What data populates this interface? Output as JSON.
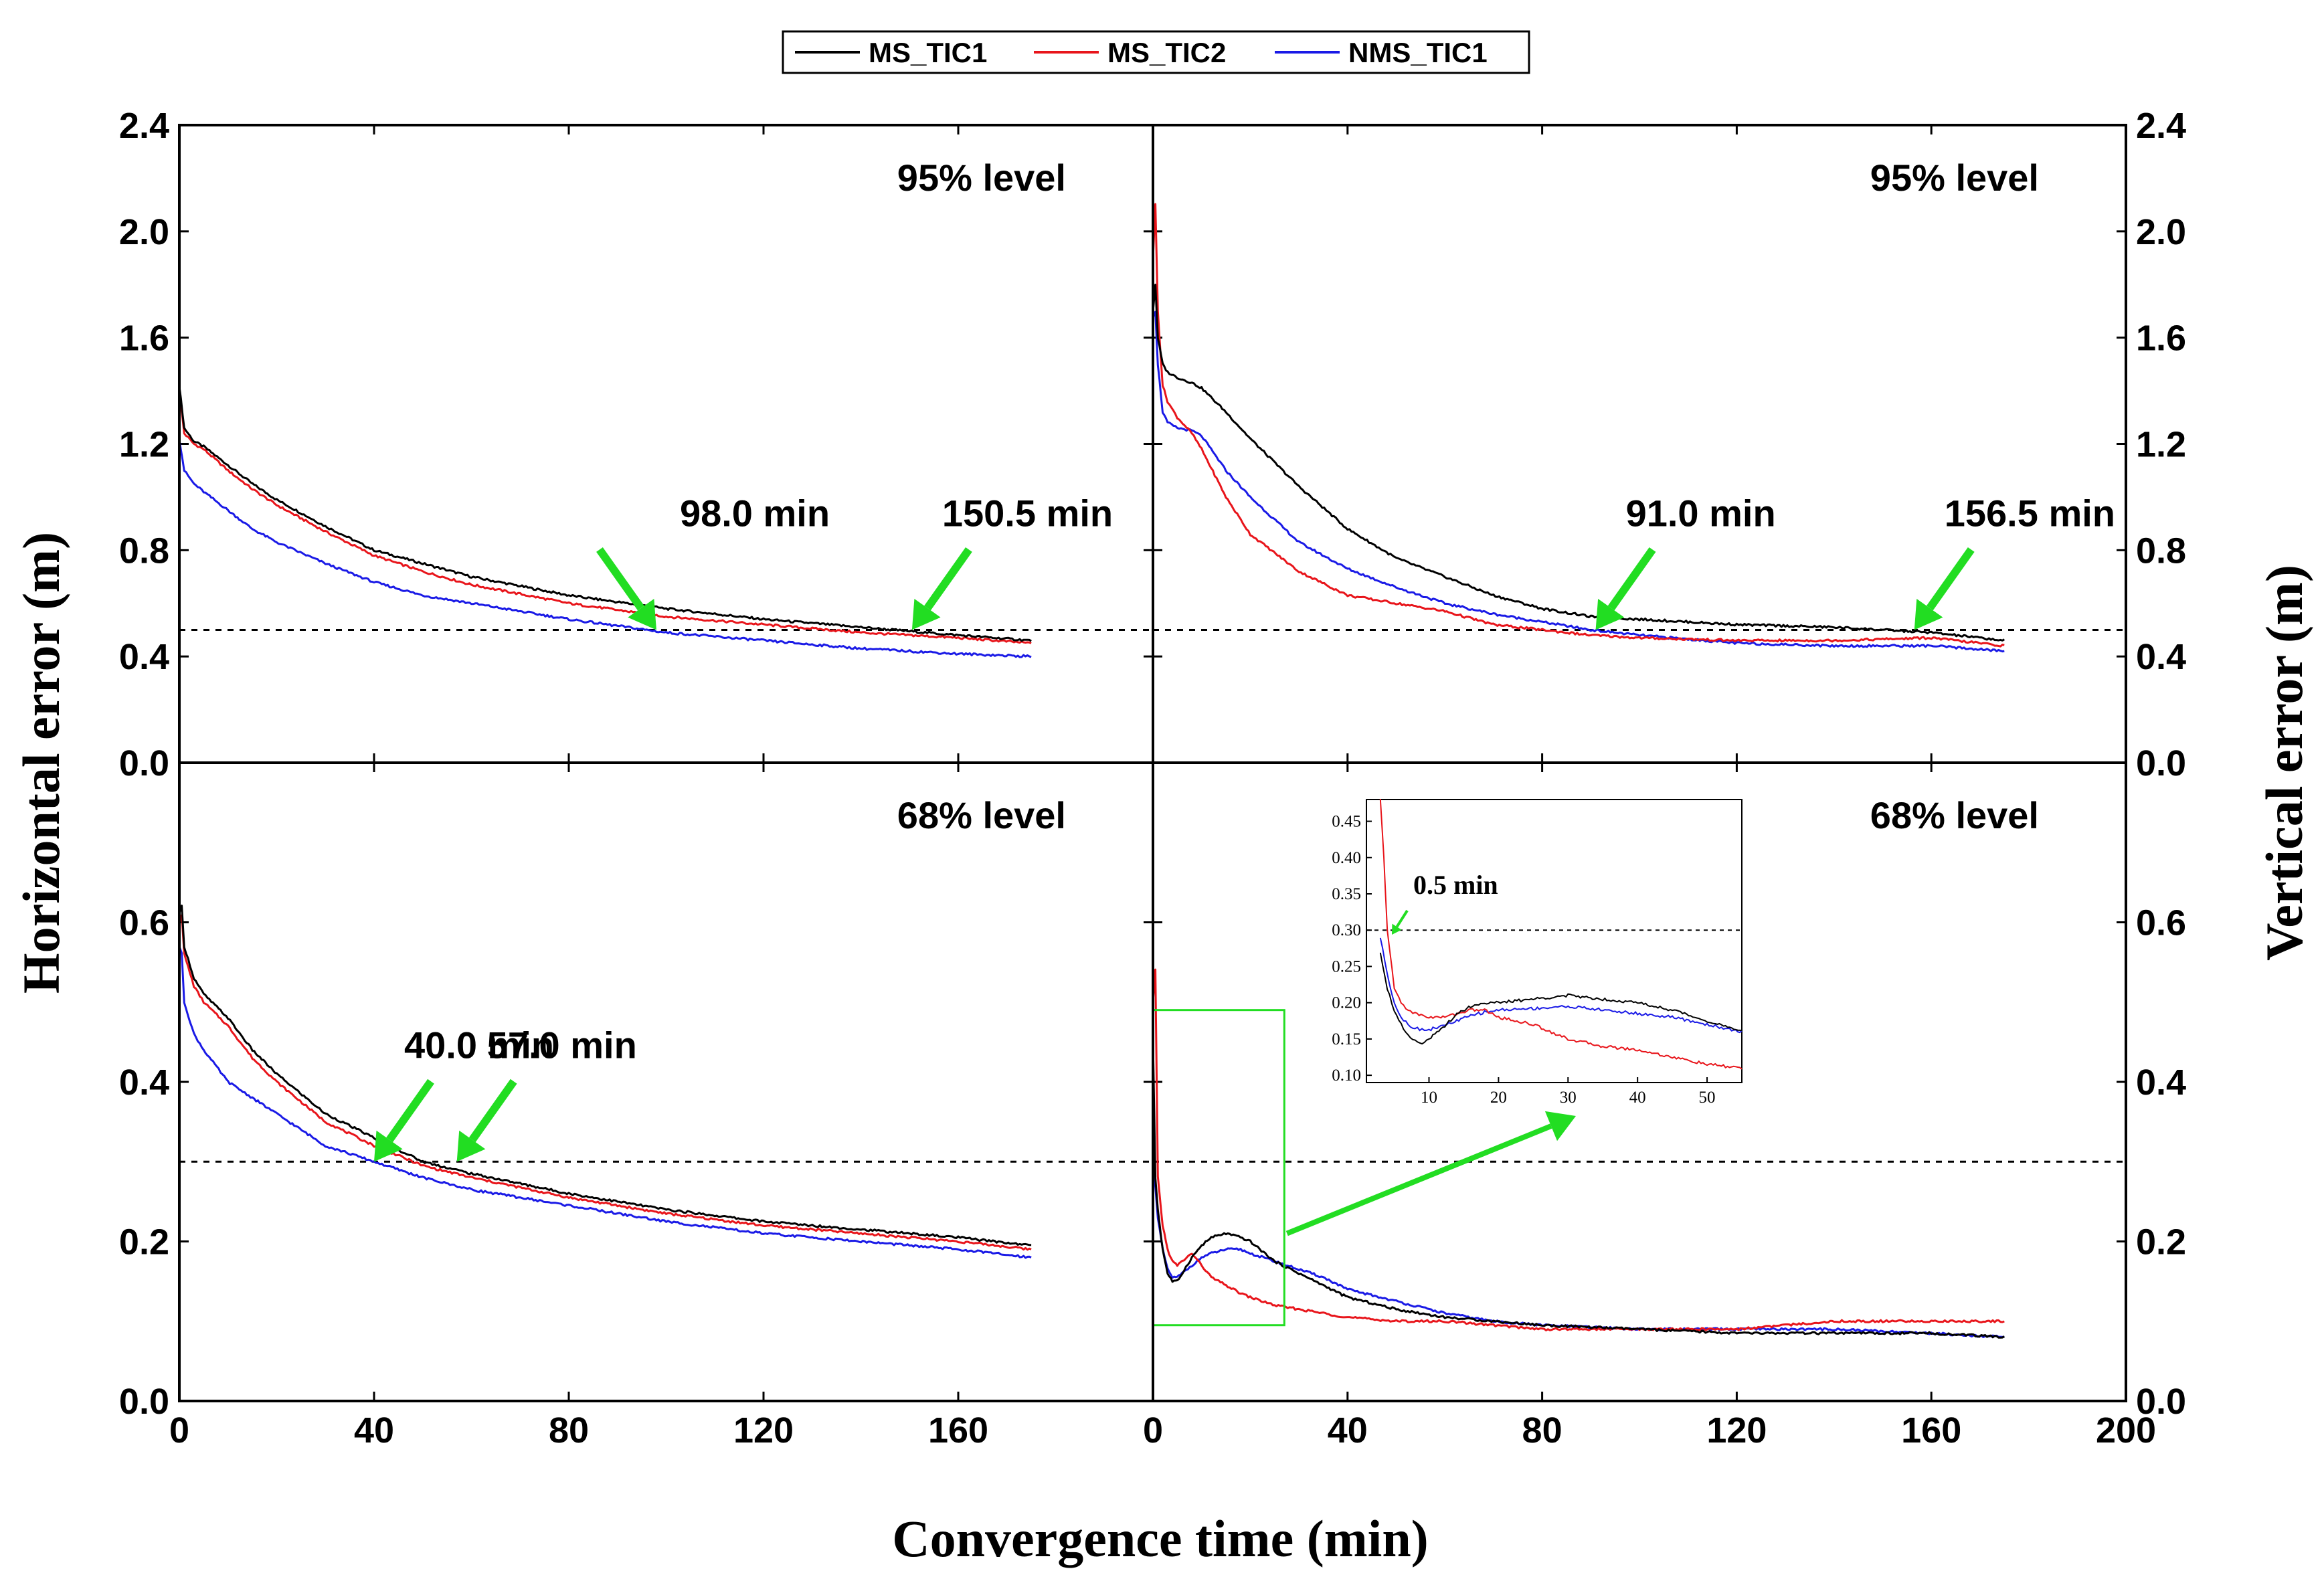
{
  "figure": {
    "xlabel": "Convergence time (min)",
    "ylabel_left": "Horizontal error (m)",
    "ylabel_right": "Vertical error (m)"
  },
  "legend": {
    "entries": [
      {
        "label": "MS_TIC1",
        "color": "#000000"
      },
      {
        "label": "MS_TIC2",
        "color": "#e8151b"
      },
      {
        "label": "NMS_TIC1",
        "color": "#1a1ae6"
      }
    ]
  },
  "accent_color": "#22dd22",
  "chart_data": [
    {
      "id": "top_left",
      "type": "line",
      "title": "95%  level",
      "quantity": "Horizontal error",
      "xlim": [
        0,
        200
      ],
      "ylim": [
        0,
        2.4
      ],
      "xticks": [
        "0",
        "40",
        "80",
        "120",
        "160",
        "200"
      ],
      "yticks": [
        "0.0",
        "0.4",
        "0.8",
        "1.2",
        "1.6",
        "2.0",
        "2.4"
      ],
      "threshold": 0.5,
      "series": [
        {
          "name": "MS_TIC1",
          "x": [
            0,
            1,
            3,
            5,
            10,
            15,
            20,
            30,
            40,
            50,
            60,
            80,
            100,
            120,
            140,
            160,
            175
          ],
          "y": [
            1.42,
            1.26,
            1.21,
            1.19,
            1.12,
            1.05,
            0.99,
            0.89,
            0.8,
            0.75,
            0.7,
            0.63,
            0.58,
            0.54,
            0.51,
            0.48,
            0.46
          ]
        },
        {
          "name": "MS_TIC2",
          "x": [
            0,
            1,
            3,
            5,
            10,
            15,
            20,
            30,
            40,
            50,
            60,
            80,
            100,
            120,
            140,
            160,
            175
          ],
          "y": [
            1.4,
            1.24,
            1.2,
            1.18,
            1.1,
            1.03,
            0.97,
            0.87,
            0.78,
            0.72,
            0.67,
            0.6,
            0.55,
            0.52,
            0.49,
            0.47,
            0.45
          ]
        },
        {
          "name": "NMS_TIC1",
          "x": [
            0,
            1,
            3,
            5,
            10,
            15,
            20,
            30,
            40,
            50,
            60,
            80,
            100,
            120,
            140,
            160,
            175
          ],
          "y": [
            1.22,
            1.1,
            1.05,
            1.02,
            0.95,
            0.88,
            0.83,
            0.75,
            0.68,
            0.63,
            0.6,
            0.54,
            0.49,
            0.46,
            0.43,
            0.41,
            0.4
          ]
        }
      ],
      "annotations": [
        {
          "text": "98.0  min",
          "x": 98.0,
          "y": 0.5
        },
        {
          "text": "150.5  min",
          "x": 150.5,
          "y": 0.5
        }
      ]
    },
    {
      "id": "top_right",
      "type": "line",
      "title": "95%  level",
      "quantity": "Vertical error",
      "xlim": [
        0,
        200
      ],
      "ylim": [
        0,
        2.4
      ],
      "xticks": [
        "0",
        "40",
        "80",
        "120",
        "160",
        "200"
      ],
      "yticks": [
        "0.0",
        "0.4",
        "0.8",
        "1.2",
        "1.6",
        "2.0",
        "2.4"
      ],
      "threshold": 0.5,
      "series": [
        {
          "name": "MS_TIC1",
          "x": [
            0,
            0.5,
            1,
            2,
            3,
            5,
            8,
            10,
            15,
            20,
            30,
            40,
            50,
            60,
            70,
            80,
            90,
            100,
            120,
            140,
            160,
            175
          ],
          "y": [
            1.7,
            1.8,
            1.6,
            1.5,
            1.47,
            1.45,
            1.43,
            1.41,
            1.32,
            1.22,
            1.04,
            0.88,
            0.77,
            0.7,
            0.63,
            0.58,
            0.55,
            0.54,
            0.52,
            0.51,
            0.49,
            0.46
          ]
        },
        {
          "name": "MS_TIC2",
          "x": [
            0,
            0.5,
            1,
            2,
            3,
            5,
            8,
            10,
            15,
            20,
            30,
            40,
            50,
            60,
            70,
            80,
            90,
            100,
            120,
            140,
            160,
            175
          ],
          "y": [
            1.9,
            2.1,
            1.7,
            1.42,
            1.36,
            1.3,
            1.24,
            1.18,
            1.0,
            0.86,
            0.72,
            0.63,
            0.6,
            0.57,
            0.52,
            0.5,
            0.48,
            0.47,
            0.46,
            0.46,
            0.47,
            0.44
          ]
        },
        {
          "name": "NMS_TIC1",
          "x": [
            0,
            0.5,
            1,
            2,
            3,
            5,
            8,
            10,
            15,
            20,
            30,
            40,
            50,
            60,
            70,
            80,
            90,
            100,
            120,
            140,
            160,
            175
          ],
          "y": [
            1.68,
            1.7,
            1.5,
            1.32,
            1.28,
            1.26,
            1.25,
            1.23,
            1.1,
            1.0,
            0.83,
            0.73,
            0.66,
            0.6,
            0.56,
            0.53,
            0.5,
            0.48,
            0.45,
            0.44,
            0.44,
            0.42
          ]
        }
      ],
      "annotations": [
        {
          "text": "91.0  min",
          "x": 91.0,
          "y": 0.5
        },
        {
          "text": "156.5  min",
          "x": 156.5,
          "y": 0.5
        }
      ]
    },
    {
      "id": "bottom_left",
      "type": "line",
      "title": "68%  level",
      "quantity": "Horizontal error",
      "xlim": [
        0,
        200
      ],
      "ylim": [
        0,
        0.8
      ],
      "xticks": [
        "0",
        "40",
        "80",
        "120",
        "160",
        "200"
      ],
      "yticks": [
        "0.0",
        "0.2",
        "0.4",
        "0.6"
      ],
      "threshold": 0.3,
      "series": [
        {
          "name": "MS_TIC1",
          "x": [
            0,
            0.5,
            1,
            3,
            5,
            10,
            15,
            20,
            30,
            40,
            50,
            60,
            80,
            100,
            120,
            140,
            160,
            175
          ],
          "y": [
            0.61,
            0.62,
            0.57,
            0.53,
            0.51,
            0.48,
            0.44,
            0.41,
            0.36,
            0.33,
            0.3,
            0.285,
            0.26,
            0.24,
            0.225,
            0.215,
            0.205,
            0.195
          ]
        },
        {
          "name": "MS_TIC2",
          "x": [
            0,
            0.5,
            1,
            3,
            5,
            10,
            15,
            20,
            30,
            40,
            50,
            60,
            80,
            100,
            120,
            140,
            160,
            175
          ],
          "y": [
            0.6,
            0.61,
            0.56,
            0.52,
            0.5,
            0.47,
            0.43,
            0.4,
            0.35,
            0.32,
            0.295,
            0.28,
            0.255,
            0.235,
            0.22,
            0.21,
            0.2,
            0.19
          ]
        },
        {
          "name": "NMS_TIC1",
          "x": [
            0,
            0.5,
            1,
            3,
            5,
            10,
            15,
            20,
            30,
            40,
            50,
            60,
            80,
            100,
            120,
            140,
            160,
            175
          ],
          "y": [
            0.57,
            0.56,
            0.5,
            0.46,
            0.44,
            0.4,
            0.38,
            0.36,
            0.32,
            0.3,
            0.28,
            0.265,
            0.245,
            0.225,
            0.21,
            0.2,
            0.19,
            0.18
          ]
        }
      ],
      "annotations": [
        {
          "text": "40.0  min",
          "x": 40.0,
          "y": 0.3
        },
        {
          "text": "57.0  min",
          "x": 57.0,
          "y": 0.3
        }
      ]
    },
    {
      "id": "bottom_right",
      "type": "line",
      "title": "68%  level",
      "quantity": "Vertical error",
      "xlim": [
        0,
        200
      ],
      "ylim": [
        0,
        0.8
      ],
      "xticks": [
        "0",
        "40",
        "80",
        "120",
        "160",
        "200"
      ],
      "yticks": [
        "0.0",
        "0.2",
        "0.4",
        "0.6"
      ],
      "threshold": 0.3,
      "series": [
        {
          "name": "MS_TIC1",
          "x": [
            0,
            0.5,
            1,
            2,
            3,
            4,
            5,
            6,
            8,
            10,
            12,
            15,
            18,
            20,
            25,
            30,
            35,
            40,
            50,
            60,
            70,
            80,
            100,
            120,
            140,
            160,
            175
          ],
          "y": [
            0.45,
            0.28,
            0.24,
            0.19,
            0.16,
            0.15,
            0.15,
            0.16,
            0.18,
            0.195,
            0.205,
            0.21,
            0.205,
            0.2,
            0.175,
            0.16,
            0.145,
            0.13,
            0.115,
            0.105,
            0.1,
            0.095,
            0.09,
            0.085,
            0.085,
            0.085,
            0.08
          ]
        },
        {
          "name": "MS_TIC2",
          "x": [
            0,
            0.5,
            1,
            2,
            3,
            4,
            5,
            6,
            8,
            10,
            12,
            15,
            18,
            20,
            25,
            30,
            35,
            40,
            50,
            60,
            70,
            80,
            100,
            120,
            140,
            160,
            175
          ],
          "y": [
            0.5,
            0.54,
            0.28,
            0.22,
            0.19,
            0.175,
            0.17,
            0.175,
            0.185,
            0.17,
            0.155,
            0.145,
            0.135,
            0.13,
            0.12,
            0.115,
            0.11,
            0.105,
            0.1,
            0.1,
            0.095,
            0.09,
            0.09,
            0.09,
            0.1,
            0.1,
            0.1
          ]
        },
        {
          "name": "NMS_TIC1",
          "x": [
            0,
            0.5,
            1,
            2,
            3,
            4,
            5,
            6,
            8,
            10,
            12,
            15,
            18,
            20,
            25,
            30,
            35,
            40,
            50,
            60,
            70,
            80,
            100,
            120,
            140,
            160,
            175
          ],
          "y": [
            0.3,
            0.27,
            0.23,
            0.19,
            0.165,
            0.155,
            0.155,
            0.16,
            0.17,
            0.18,
            0.185,
            0.19,
            0.19,
            0.185,
            0.175,
            0.165,
            0.155,
            0.14,
            0.125,
            0.11,
            0.1,
            0.095,
            0.09,
            0.09,
            0.09,
            0.085,
            0.08
          ]
        }
      ],
      "zoom_box": {
        "x": [
          0,
          27
        ],
        "y": [
          0.095,
          0.49
        ]
      }
    },
    {
      "id": "inset",
      "type": "line",
      "title": "",
      "quantity": "Vertical error (zoom)",
      "xlim": [
        1,
        55
      ],
      "ylim": [
        0.09,
        0.48
      ],
      "xticks": [
        "10",
        "20",
        "30",
        "40",
        "50"
      ],
      "xtick_values": [
        10,
        20,
        30,
        40,
        50
      ],
      "yticks": [
        "0.10",
        "0.15",
        "0.20",
        "0.25",
        "0.30",
        "0.35",
        "0.40",
        "0.45"
      ],
      "ytick_values": [
        0.1,
        0.15,
        0.2,
        0.25,
        0.3,
        0.35,
        0.4,
        0.45
      ],
      "threshold": 0.3,
      "series": [
        {
          "name": "MS_TIC1",
          "x": [
            3,
            4,
            5,
            6,
            7,
            8,
            9,
            10,
            12,
            14,
            16,
            18,
            20,
            25,
            30,
            35,
            40,
            45,
            50,
            55
          ],
          "y": [
            0.27,
            0.22,
            0.19,
            0.17,
            0.155,
            0.148,
            0.145,
            0.15,
            0.165,
            0.185,
            0.195,
            0.2,
            0.2,
            0.205,
            0.21,
            0.205,
            0.2,
            0.19,
            0.175,
            0.16
          ]
        },
        {
          "name": "MS_TIC2",
          "x": [
            3,
            3.5,
            4,
            5,
            6,
            7,
            8,
            10,
            12,
            14,
            16,
            18,
            20,
            25,
            30,
            35,
            40,
            45,
            50,
            55
          ],
          "y": [
            0.48,
            0.4,
            0.3,
            0.22,
            0.2,
            0.19,
            0.185,
            0.18,
            0.18,
            0.185,
            0.19,
            0.19,
            0.18,
            0.17,
            0.15,
            0.14,
            0.135,
            0.125,
            0.115,
            0.11
          ]
        },
        {
          "name": "NMS_TIC1",
          "x": [
            3,
            4,
            5,
            6,
            7,
            8,
            9,
            10,
            12,
            14,
            16,
            18,
            20,
            25,
            30,
            35,
            40,
            45,
            50,
            55
          ],
          "y": [
            0.29,
            0.24,
            0.2,
            0.18,
            0.17,
            0.165,
            0.163,
            0.163,
            0.168,
            0.175,
            0.182,
            0.187,
            0.19,
            0.192,
            0.195,
            0.19,
            0.185,
            0.18,
            0.17,
            0.16
          ]
        }
      ],
      "annotations": [
        {
          "text": "0.5  min",
          "x": 0.5,
          "y": 0.3
        }
      ]
    }
  ]
}
